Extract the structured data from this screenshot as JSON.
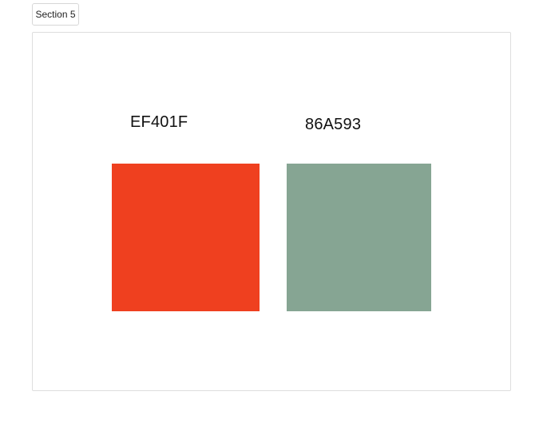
{
  "section_tab": {
    "label": "Section 5"
  },
  "swatches": [
    {
      "label": "EF401F",
      "color": "#EF401F"
    },
    {
      "label": "86A593",
      "color": "#86A593"
    }
  ]
}
